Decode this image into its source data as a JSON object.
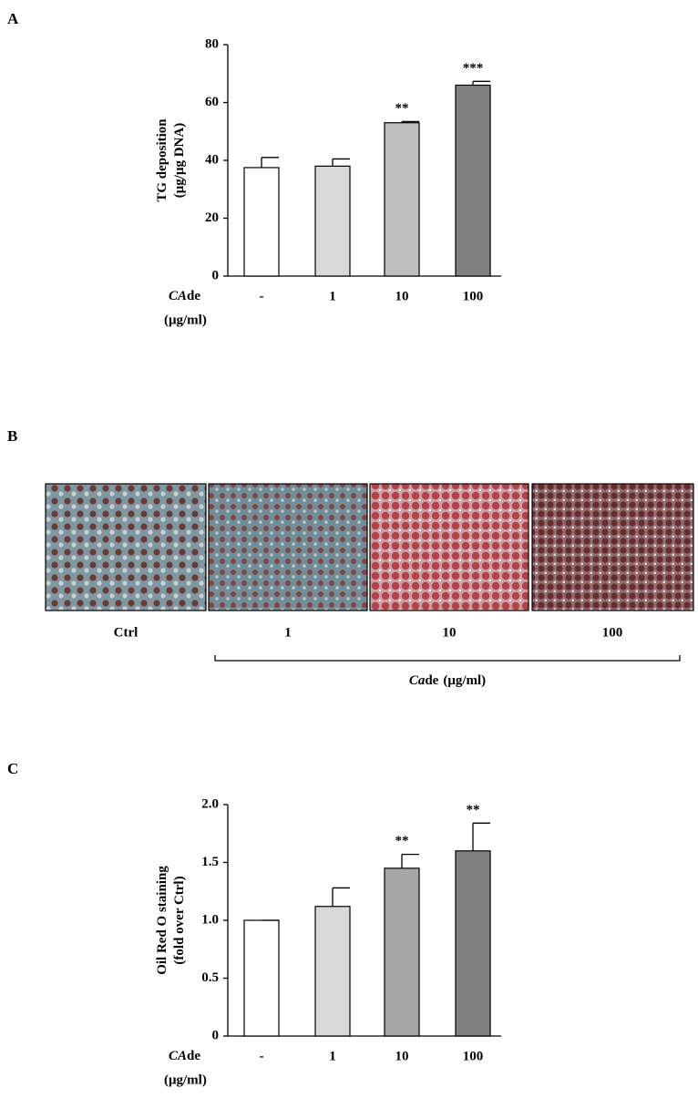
{
  "panels": {
    "a": "A",
    "b": "B",
    "c": "C"
  },
  "micrographs": {
    "labels": [
      "Ctrl",
      "1",
      "10",
      "100"
    ],
    "caption": {
      "italic": "Ca",
      "rest": "de",
      "unit": "(μg/ml)"
    }
  },
  "chart_data": [
    {
      "type": "bar",
      "ylabel": [
        "TG deposition",
        "(μg/μg DNA)"
      ],
      "xlabel": {
        "italic": "CA",
        "rest": "de",
        "unit": "(μg/ml)"
      },
      "categories": [
        "-",
        "1",
        "10",
        "100"
      ],
      "values": [
        37.5,
        38,
        53,
        66
      ],
      "errors": [
        3.5,
        2.5,
        0.4,
        1.3
      ],
      "annotations": [
        null,
        null,
        "**",
        "***"
      ],
      "colors": [
        "#ffffff",
        "#d9d9d9",
        "#bfbfbf",
        "#7f7f7f"
      ],
      "ylim": [
        0,
        80
      ],
      "yticks": [
        0,
        20,
        40,
        60,
        80
      ]
    },
    {
      "type": "bar",
      "ylabel": [
        "Oil Red O staining",
        "(fold over Ctrl)"
      ],
      "xlabel": {
        "italic": "CA",
        "rest": "de",
        "unit": "(μg/ml)"
      },
      "categories": [
        "-",
        "1",
        "10",
        "100"
      ],
      "values": [
        1.0,
        1.12,
        1.45,
        1.6
      ],
      "errors": [
        0,
        0.16,
        0.12,
        0.24
      ],
      "annotations": [
        null,
        null,
        "**",
        "**"
      ],
      "colors": [
        "#ffffff",
        "#d9d9d9",
        "#a6a6a6",
        "#7f7f7f"
      ],
      "ylim": [
        0,
        2
      ],
      "yticks": [
        0,
        0.5,
        {
          "value": 1,
          "label": "1.0"
        },
        1.5,
        {
          "value": 2,
          "label": "2.0"
        }
      ]
    }
  ]
}
